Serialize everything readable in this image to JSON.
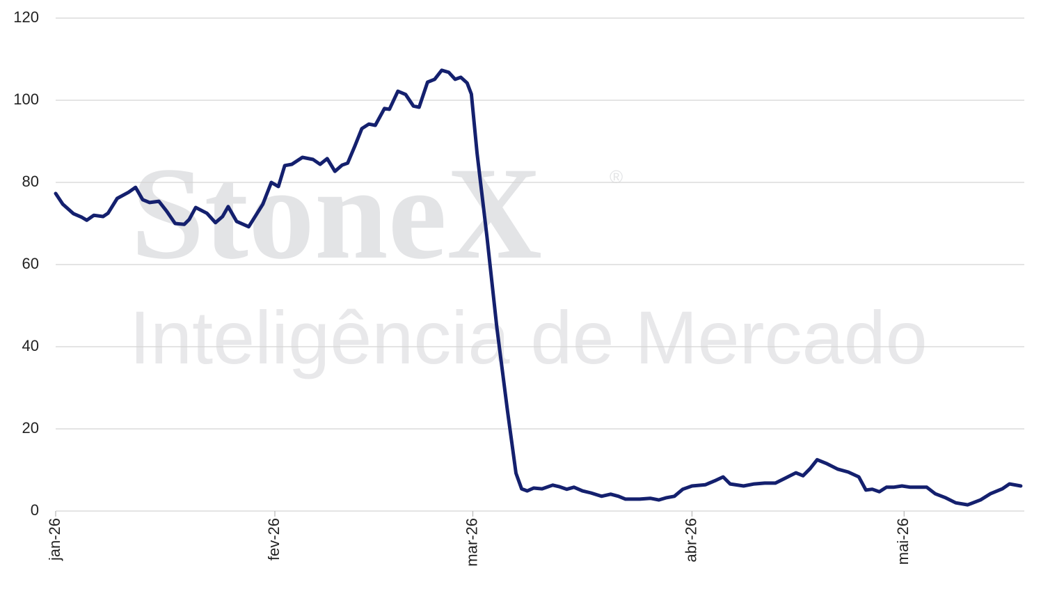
{
  "chart_data": {
    "type": "line",
    "watermark": {
      "brand": "StoneX",
      "mark": "®",
      "tagline": "Inteligência de Mercado"
    },
    "x": [
      0,
      1,
      2.5,
      3.7,
      4.4,
      5.4,
      6.7,
      7.4,
      8.7,
      10.3,
      11.3,
      12.3,
      13.3,
      14.6,
      15.7,
      16.9,
      18.2,
      18.9,
      19.8,
      21.4,
      22.6,
      23.6,
      24.4,
      25.6,
      27.3,
      29.3,
      30.5,
      31.5,
      32.4,
      33.4,
      34.9,
      36.4,
      37.4,
      38.4,
      39.5,
      40.5,
      41.3,
      42.3,
      43.3,
      44.3,
      45.2,
      46.5,
      47.2,
      48.4,
      49.5,
      50.6,
      51.4,
      52.6,
      53.6,
      54.6,
      55.6,
      56.5,
      57.3,
      58.2,
      58.8,
      59.6,
      61,
      62.4,
      63.9,
      65.1,
      65.9,
      66.7,
      67.6,
      68.8,
      70.3,
      71.3,
      72.3,
      73.3,
      74.5,
      75.7,
      77.2,
      78.5,
      79.6,
      80.6,
      82.6,
      84.1,
      85.3,
      86.3,
      87.5,
      88.7,
      90,
      91.9,
      93.4,
      94.4,
      95.4,
      97.3,
      98.8,
      100.3,
      101.8,
      103.2,
      104.7,
      105.7,
      106.7,
      107.7,
      109.1,
      110.6,
      112.1,
      113.6,
      114.6,
      115.5,
      116.5,
      117.5,
      118.5,
      119.7,
      120.9,
      123.2,
      124.4,
      125.9,
      127.3,
      129,
      130.8,
      132.2,
      133.9,
      134.9,
      136.5
    ],
    "values": [
      77.3,
      74.7,
      72.4,
      71.5,
      70.8,
      72,
      71.7,
      72.5,
      76.1,
      77.6,
      78.8,
      75.8,
      75.1,
      75.4,
      73,
      70,
      69.8,
      71,
      73.9,
      72.5,
      70.2,
      71.7,
      74.1,
      70.5,
      69.2,
      74.7,
      80,
      79,
      84.1,
      84.4,
      86.1,
      85.6,
      84.4,
      85.8,
      82.7,
      84.2,
      84.7,
      88.8,
      93.1,
      94.2,
      93.9,
      98,
      97.8,
      102.2,
      101.4,
      98.6,
      98.3,
      104.4,
      105.1,
      107.3,
      106.8,
      105.1,
      105.6,
      104.2,
      101.5,
      87.1,
      66.8,
      44.7,
      24.4,
      9.2,
      5.4,
      4.9,
      5.6,
      5.4,
      6.3,
      5.9,
      5.3,
      5.8,
      4.9,
      4.4,
      3.6,
      4.1,
      3.6,
      2.9,
      2.9,
      3.1,
      2.7,
      3.2,
      3.6,
      5.3,
      6.1,
      6.4,
      7.5,
      8.3,
      6.6,
      6.1,
      6.6,
      6.8,
      6.8,
      8,
      9.3,
      8.6,
      10.3,
      12.5,
      11.5,
      10.2,
      9.5,
      8.3,
      5.1,
      5.3,
      4.7,
      5.8,
      5.8,
      6.1,
      5.8,
      5.8,
      4.2,
      3.2,
      2,
      1.5,
      2.7,
      4.2,
      5.4,
      6.6,
      6.1
    ],
    "color": "#14206e",
    "xlim": [
      0,
      137
    ],
    "xticks": [
      {
        "value": 0,
        "label": "jan-26"
      },
      {
        "value": 31,
        "label": "fev-26"
      },
      {
        "value": 59,
        "label": "mar-26"
      },
      {
        "value": 90,
        "label": "abr-26"
      },
      {
        "value": 120,
        "label": "mai-26"
      }
    ],
    "ylim": [
      0,
      120
    ],
    "yticks": [
      0,
      20,
      40,
      60,
      80,
      100,
      120
    ],
    "grid": true
  }
}
